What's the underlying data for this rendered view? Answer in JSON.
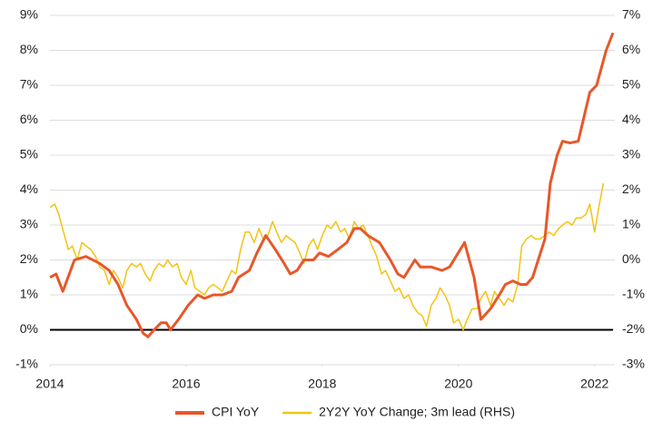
{
  "chart_data": {
    "type": "line",
    "xlim": [
      2014,
      2022.27
    ],
    "xticks": [
      2014,
      2016,
      2018,
      2020,
      2022
    ],
    "ylim": [
      -1,
      9
    ],
    "yticks": [
      {
        "value": -1,
        "label": "-1%"
      },
      {
        "value": 0,
        "label": "0%"
      },
      {
        "value": 1,
        "label": "1%"
      },
      {
        "value": 2,
        "label": "2%"
      },
      {
        "value": 3,
        "label": "3%"
      },
      {
        "value": 4,
        "label": "4%"
      },
      {
        "value": 5,
        "label": "5%"
      },
      {
        "value": 6,
        "label": "6%"
      },
      {
        "value": 7,
        "label": "7%"
      },
      {
        "value": 8,
        "label": "8%"
      },
      {
        "value": 9,
        "label": "9%"
      }
    ],
    "y2lim": [
      -3,
      7
    ],
    "y2ticks": [
      {
        "value": -3,
        "label": "-3%"
      },
      {
        "value": -2,
        "label": "-2%"
      },
      {
        "value": -1,
        "label": "-1%"
      },
      {
        "value": 0,
        "label": "0%"
      },
      {
        "value": 1,
        "label": "1%"
      },
      {
        "value": 2,
        "label": "2%"
      },
      {
        "value": 3,
        "label": "3%"
      },
      {
        "value": 4,
        "label": "4%"
      },
      {
        "value": 5,
        "label": "5%"
      },
      {
        "value": 6,
        "label": "6%"
      },
      {
        "value": 7,
        "label": "7%"
      }
    ],
    "grid": true,
    "zero_line": true,
    "legend": "bottom",
    "series": [
      {
        "name": "CPI YoY",
        "color": "#e8572a",
        "width": 3,
        "x": [
          2014.0,
          2014.09,
          2014.19,
          2014.36,
          2014.53,
          2014.73,
          2014.87,
          2015.0,
          2015.13,
          2015.27,
          2015.37,
          2015.44,
          2015.53,
          2015.63,
          2015.71,
          2015.77,
          2015.89,
          2016.03,
          2016.17,
          2016.27,
          2016.4,
          2016.53,
          2016.67,
          2016.77,
          2016.93,
          2017.04,
          2017.17,
          2017.31,
          2017.44,
          2017.53,
          2017.63,
          2017.73,
          2017.87,
          2017.96,
          2018.09,
          2018.23,
          2018.36,
          2018.47,
          2018.56,
          2018.67,
          2018.84,
          2019.0,
          2019.11,
          2019.2,
          2019.36,
          2019.44,
          2019.6,
          2019.76,
          2019.87,
          2020.09,
          2020.23,
          2020.33,
          2020.47,
          2020.6,
          2020.69,
          2020.8,
          2020.91,
          2021.0,
          2021.09,
          2021.27,
          2021.35,
          2021.45,
          2021.53,
          2021.64,
          2021.76,
          2021.93,
          2022.03,
          2022.17,
          2022.27
        ],
        "values": [
          1.5,
          1.6,
          1.1,
          2.0,
          2.1,
          1.9,
          1.7,
          1.3,
          0.7,
          0.3,
          -0.1,
          -0.2,
          0.0,
          0.2,
          0.2,
          0.0,
          0.3,
          0.7,
          1.0,
          0.9,
          1.0,
          1.0,
          1.1,
          1.5,
          1.7,
          2.2,
          2.7,
          2.3,
          1.9,
          1.6,
          1.7,
          2.0,
          2.0,
          2.2,
          2.1,
          2.3,
          2.5,
          2.9,
          2.9,
          2.7,
          2.5,
          2.0,
          1.6,
          1.5,
          2.0,
          1.8,
          1.8,
          1.7,
          1.8,
          2.5,
          1.5,
          0.3,
          0.6,
          1.0,
          1.3,
          1.4,
          1.3,
          1.3,
          1.5,
          2.6,
          4.2,
          5.0,
          5.4,
          5.35,
          5.4,
          6.8,
          7.0,
          8.0,
          8.5
        ]
      },
      {
        "name": "2Y2Y YoY Change; 3m lead (RHS)",
        "color": "#f2c413",
        "width": 1.5,
        "axis": "y2",
        "x": [
          2014.0,
          2014.07,
          2014.13,
          2014.2,
          2014.27,
          2014.33,
          2014.4,
          2014.47,
          2014.53,
          2014.6,
          2014.67,
          2014.73,
          2014.8,
          2014.87,
          2014.93,
          2015.0,
          2015.07,
          2015.13,
          2015.2,
          2015.27,
          2015.33,
          2015.4,
          2015.47,
          2015.53,
          2015.6,
          2015.67,
          2015.73,
          2015.8,
          2015.87,
          2015.93,
          2016.0,
          2016.07,
          2016.13,
          2016.2,
          2016.27,
          2016.33,
          2016.4,
          2016.47,
          2016.53,
          2016.6,
          2016.67,
          2016.73,
          2016.8,
          2016.87,
          2016.93,
          2017.0,
          2017.07,
          2017.13,
          2017.2,
          2017.27,
          2017.33,
          2017.4,
          2017.47,
          2017.53,
          2017.6,
          2017.67,
          2017.73,
          2017.8,
          2017.87,
          2017.93,
          2018.0,
          2018.07,
          2018.13,
          2018.2,
          2018.27,
          2018.33,
          2018.4,
          2018.47,
          2018.53,
          2018.6,
          2018.67,
          2018.73,
          2018.8,
          2018.87,
          2018.93,
          2019.0,
          2019.07,
          2019.13,
          2019.2,
          2019.27,
          2019.33,
          2019.4,
          2019.47,
          2019.53,
          2019.6,
          2019.67,
          2019.73,
          2019.8,
          2019.87,
          2019.93,
          2020.0,
          2020.07,
          2020.13,
          2020.2,
          2020.27,
          2020.33,
          2020.4,
          2020.47,
          2020.53,
          2020.6,
          2020.67,
          2020.73,
          2020.8,
          2020.87,
          2020.93,
          2021.0,
          2021.07,
          2021.13,
          2021.2,
          2021.27,
          2021.33,
          2021.4,
          2021.47,
          2021.53,
          2021.6,
          2021.67,
          2021.73,
          2021.8,
          2021.87,
          2021.93,
          2022.0,
          2022.07,
          2022.13
        ],
        "values": [
          1.5,
          1.6,
          1.3,
          0.8,
          0.3,
          0.4,
          0.0,
          0.5,
          0.4,
          0.3,
          0.1,
          -0.2,
          -0.3,
          -0.7,
          -0.3,
          -0.5,
          -0.8,
          -0.3,
          -0.1,
          -0.2,
          -0.1,
          -0.4,
          -0.6,
          -0.3,
          -0.1,
          -0.2,
          0.0,
          -0.2,
          -0.1,
          -0.5,
          -0.7,
          -0.3,
          -0.8,
          -0.9,
          -1.0,
          -0.8,
          -0.7,
          -0.8,
          -0.9,
          -0.6,
          -0.3,
          -0.4,
          0.3,
          0.8,
          0.8,
          0.5,
          0.9,
          0.6,
          0.7,
          1.1,
          0.8,
          0.5,
          0.7,
          0.6,
          0.5,
          0.2,
          -0.1,
          0.4,
          0.6,
          0.3,
          0.7,
          1.0,
          0.9,
          1.1,
          0.8,
          0.9,
          0.6,
          1.1,
          0.9,
          1.0,
          0.7,
          0.4,
          0.1,
          -0.4,
          -0.3,
          -0.6,
          -0.9,
          -0.8,
          -1.1,
          -1.0,
          -1.3,
          -1.5,
          -1.6,
          -1.9,
          -1.3,
          -1.1,
          -0.8,
          -1.0,
          -1.3,
          -1.8,
          -1.7,
          -2.0,
          -1.7,
          -1.4,
          -1.4,
          -1.1,
          -0.9,
          -1.3,
          -0.9,
          -1.1,
          -1.3,
          -1.1,
          -1.2,
          -0.7,
          0.4,
          0.6,
          0.7,
          0.6,
          0.6,
          0.7,
          0.8,
          0.7,
          0.9,
          1.0,
          1.1,
          1.0,
          1.2,
          1.2,
          1.3,
          1.6,
          0.8,
          1.6,
          2.2
        ]
      }
    ]
  }
}
